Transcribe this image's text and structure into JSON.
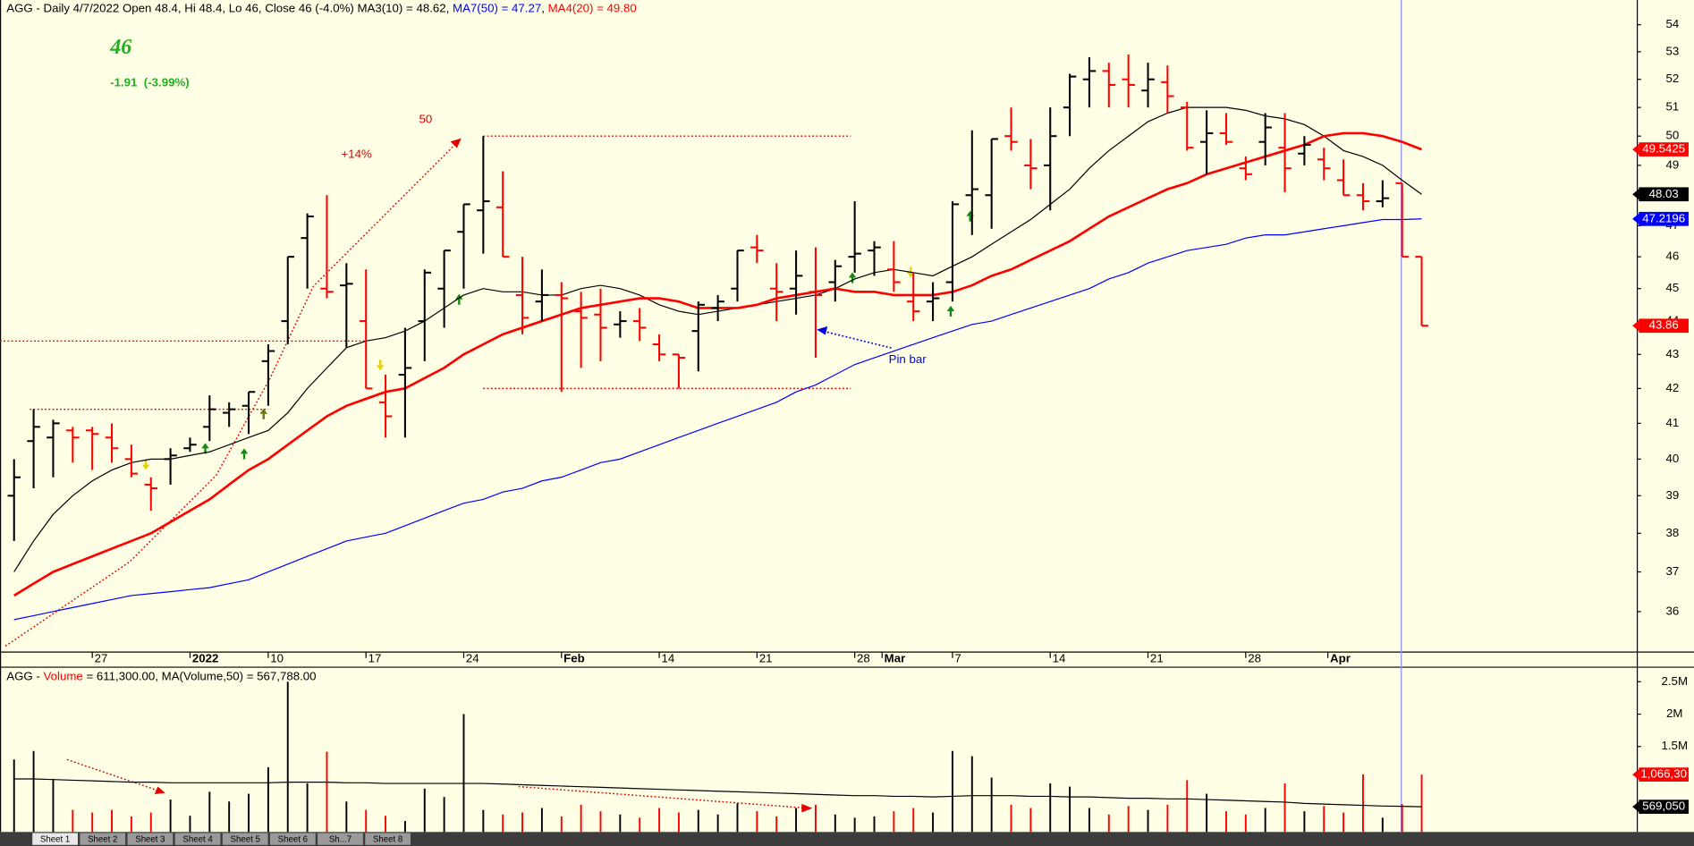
{
  "chart_data": [
    {
      "type": "ohlc",
      "header": [
        {
          "text": "AGG - Daily 4/7/2022 Open 48.4, Hi 48.4, Lo 46, Close 46 (-4.0%) MA3(10) = 48.62, ",
          "color": "#000000"
        },
        {
          "text": "MA7(50) = 47.27",
          "color": "#0000ff"
        },
        {
          "text": ", ",
          "color": "#000000"
        },
        {
          "text": "MA4(20) = 49.80",
          "color": "#ff0000"
        }
      ],
      "price_label": "46",
      "change_label": "-1.91  (-3.99%)",
      "log_scale": true,
      "xlim": [
        -0.72,
        83
      ],
      "ylim": [
        35.02,
        54.93
      ],
      "yticks": [
        36,
        37,
        38,
        39,
        40,
        41,
        42,
        43,
        44,
        45,
        46,
        47,
        48,
        49,
        50,
        51,
        52,
        53,
        54
      ],
      "xticks": [
        {
          "value": 4,
          "label": "27"
        },
        {
          "value": 9,
          "label": "2022"
        },
        {
          "value": 13,
          "label": "10"
        },
        {
          "value": 18,
          "label": "17"
        },
        {
          "value": 23,
          "label": "24"
        },
        {
          "value": 28,
          "label": "Feb"
        },
        {
          "value": 33,
          "label": "14"
        },
        {
          "value": 38,
          "label": "21"
        },
        {
          "value": 43,
          "label": "28"
        },
        {
          "value": 44.4,
          "label": "Mar"
        },
        {
          "value": 48,
          "label": "7"
        },
        {
          "value": 53,
          "label": "14"
        },
        {
          "value": 58,
          "label": "21"
        },
        {
          "value": 63,
          "label": "28"
        },
        {
          "value": 67.2,
          "label": "Apr"
        }
      ],
      "up_color": "#000000",
      "down_color": "#ff0000",
      "open": [
        39.0,
        40.5,
        40.6,
        40.8,
        40.8,
        40.6,
        40.0,
        39.3,
        40.0,
        40.3,
        40.9,
        41.3,
        41.5,
        42.8,
        44.0,
        46.6,
        45.0,
        45.1,
        44.0,
        41.6,
        42.4,
        44.0,
        45.0,
        46.8,
        47.5,
        47.6,
        44.8,
        44.6,
        44.8,
        44.3,
        44.2,
        43.9,
        44.0,
        43.3,
        43.0,
        43.7,
        44.4,
        45.0,
        46.3,
        45.0,
        45.0,
        44.9,
        45.2,
        46.0,
        46.2,
        45.6,
        44.6,
        44.6,
        45.2,
        48.0,
        48.0,
        50.0,
        49.0,
        49.0,
        51.0,
        52.0,
        52.3,
        52.0,
        51.6,
        51.9,
        51.0,
        49.8,
        50.1,
        48.9,
        49.8,
        49.6,
        49.4,
        49.2,
        48.5,
        48.0,
        47.8,
        48.4,
        46
      ],
      "high": [
        40.0,
        41.4,
        41.1,
        40.9,
        40.9,
        41.0,
        40.4,
        39.5,
        40.3,
        40.6,
        41.8,
        41.6,
        41.9,
        43.3,
        46.0,
        47.4,
        48.0,
        45.8,
        45.6,
        42.4,
        43.8,
        45.6,
        46.2,
        47.7,
        50.0,
        48.8,
        46.0,
        45.6,
        45.2,
        44.9,
        45.0,
        44.3,
        44.4,
        43.6,
        43.0,
        44.6,
        44.8,
        46.2,
        46.7,
        45.8,
        46.2,
        46.3,
        45.9,
        47.8,
        46.5,
        46.5,
        45.5,
        45.2,
        47.8,
        50.2,
        49.9,
        51.0,
        49.9,
        51.0,
        52.2,
        52.8,
        52.6,
        52.9,
        52.6,
        52.5,
        51.2,
        50.9,
        50.8,
        49.3,
        50.8,
        50.8,
        50.0,
        49.6,
        49.2,
        48.4,
        48.5,
        48.4,
        46
      ],
      "low": [
        37.8,
        39.2,
        39.5,
        39.9,
        39.7,
        39.9,
        39.5,
        38.6,
        39.3,
        40.2,
        40.5,
        40.9,
        40.7,
        41.5,
        43.3,
        45.0,
        44.7,
        43.2,
        42.0,
        40.6,
        40.6,
        42.8,
        43.8,
        45.0,
        46.1,
        46.0,
        43.6,
        44.0,
        41.9,
        42.6,
        42.8,
        43.5,
        43.4,
        42.8,
        42.0,
        42.5,
        44.0,
        44.6,
        45.8,
        44.0,
        44.2,
        42.9,
        44.6,
        45.5,
        45.4,
        44.9,
        44.0,
        44.0,
        44.6,
        46.7,
        46.9,
        49.5,
        48.2,
        47.5,
        50.0,
        51.0,
        51.0,
        51.0,
        51.0,
        50.8,
        49.5,
        48.7,
        49.7,
        48.5,
        49.0,
        48.1,
        49.0,
        48.5,
        48.0,
        47.5,
        47.6,
        46,
        43.86
      ],
      "close": [
        39.5,
        40.9,
        41.0,
        40.6,
        40.7,
        40.3,
        39.6,
        39.2,
        40.1,
        40.4,
        41.4,
        41.4,
        41.9,
        43.1,
        46.0,
        47.3,
        44.9,
        45.15,
        42.0,
        41.2,
        42.6,
        45.5,
        46.2,
        47.7,
        47.8,
        46.0,
        44.1,
        44.8,
        44.7,
        44.1,
        43.8,
        44.0,
        43.8,
        43.0,
        42.9,
        44.5,
        44.6,
        46.2,
        46.2,
        44.9,
        45.4,
        44.8,
        45.7,
        46.1,
        46.3,
        45.2,
        44.3,
        44.7,
        47.7,
        48.2,
        49.9,
        49.8,
        48.9,
        50.0,
        52.1,
        52.3,
        51.8,
        51.8,
        52.0,
        51.4,
        49.6,
        50.1,
        49.8,
        48.7,
        50.3,
        48.9,
        49.7,
        48.9,
        48.0,
        47.8,
        47.9,
        46,
        43.86
      ],
      "series": [
        {
          "color": "#000000",
          "values": [
            37.0,
            37.8,
            38.5,
            39.0,
            39.4,
            39.7,
            39.9,
            40.0,
            40.0,
            40.1,
            40.2,
            40.4,
            40.6,
            40.8,
            41.3,
            42.0,
            42.6,
            43.2,
            43.4,
            43.5,
            43.7,
            44.0,
            44.4,
            44.8,
            45.0,
            44.9,
            44.9,
            44.8,
            44.8,
            45.0,
            45.1,
            45.0,
            44.8,
            44.5,
            44.3,
            44.2,
            44.3,
            44.4,
            44.5,
            44.6,
            44.7,
            44.8,
            45.0,
            45.3,
            45.5,
            45.6,
            45.5,
            45.4,
            45.7,
            46.0,
            46.4,
            46.8,
            47.2,
            47.7,
            48.2,
            48.9,
            49.5,
            50.0,
            50.5,
            50.8,
            51.0,
            51.0,
            51.0,
            50.9,
            50.7,
            50.6,
            50.4,
            50.0,
            49.5,
            49.3,
            49.0,
            48.5,
            48.03
          ]
        },
        {
          "color": "#ff0000",
          "values": [
            36.4,
            36.7,
            37.0,
            37.2,
            37.4,
            37.6,
            37.8,
            38.0,
            38.3,
            38.6,
            38.9,
            39.3,
            39.7,
            40.0,
            40.4,
            40.8,
            41.2,
            41.5,
            41.7,
            41.9,
            42.0,
            42.3,
            42.6,
            43.0,
            43.3,
            43.6,
            43.8,
            44.0,
            44.2,
            44.4,
            44.5,
            44.6,
            44.7,
            44.7,
            44.6,
            44.4,
            44.4,
            44.4,
            44.5,
            44.7,
            44.8,
            44.9,
            45.0,
            44.9,
            44.9,
            44.8,
            44.8,
            44.8,
            44.9,
            45.1,
            45.4,
            45.6,
            45.9,
            46.2,
            46.5,
            46.9,
            47.3,
            47.6,
            47.9,
            48.2,
            48.4,
            48.7,
            48.9,
            49.1,
            49.3,
            49.5,
            49.7,
            50.0,
            50.1,
            50.1,
            50.0,
            49.8,
            49.5425
          ]
        },
        {
          "color": "#0000ff",
          "values": [
            35.8,
            35.9,
            36.0,
            36.1,
            36.2,
            36.3,
            36.4,
            36.45,
            36.5,
            36.55,
            36.6,
            36.7,
            36.8,
            37.0,
            37.2,
            37.4,
            37.6,
            37.8,
            37.9,
            38.0,
            38.2,
            38.4,
            38.6,
            38.8,
            38.9,
            39.1,
            39.2,
            39.4,
            39.5,
            39.7,
            39.9,
            40.0,
            40.2,
            40.4,
            40.6,
            40.8,
            41.0,
            41.2,
            41.4,
            41.6,
            41.9,
            42.1,
            42.4,
            42.7,
            42.9,
            43.1,
            43.3,
            43.5,
            43.7,
            43.9,
            44.0,
            44.2,
            44.4,
            44.6,
            44.8,
            45.0,
            45.3,
            45.5,
            45.8,
            46.0,
            46.2,
            46.3,
            46.4,
            46.6,
            46.7,
            46.7,
            46.8,
            46.9,
            47.0,
            47.1,
            47.2,
            47.2,
            47.2196
          ]
        }
      ],
      "reference_lines": [
        {
          "y": 41.4,
          "x": [
            0.8,
            13
          ]
        },
        {
          "y": 43.4,
          "x": [
            -0.72,
            18
          ]
        },
        {
          "y": 50,
          "x": [
            24,
            42.8
          ]
        },
        {
          "y": 42,
          "x": [
            24,
            42.8
          ]
        }
      ],
      "annotations": [
        "50",
        "+14%",
        "Pin bar"
      ]
    },
    {
      "type": "volume",
      "header": [
        {
          "text": "AGG - ",
          "color": "#000000"
        },
        {
          "text": "Volume",
          "color": "#ff0000"
        },
        {
          "text": " = 611,300.00, MA(Volume,50) = 567,788.00",
          "color": "#000000"
        }
      ],
      "ylim": [
        180000,
        2700000
      ],
      "yticks": [
        {
          "value": 2500000,
          "label": "2.5M"
        },
        {
          "value": 2000000,
          "label": "2M"
        },
        {
          "value": 1500000,
          "label": "1.5M"
        }
      ],
      "values": [
        1300000,
        1430000,
        1000000,
        520000,
        480000,
        520000,
        420000,
        480000,
        680000,
        430000,
        800000,
        650000,
        770000,
        1180000,
        2500000,
        930000,
        1420000,
        650000,
        520000,
        430000,
        350000,
        850000,
        720000,
        2000000,
        520000,
        450000,
        480000,
        550000,
        420000,
        600000,
        500000,
        450000,
        400000,
        550000,
        480000,
        520000,
        450000,
        620000,
        500000,
        420000,
        550000,
        600000,
        450000,
        400000,
        420000,
        500000,
        550000,
        480000,
        1430000,
        1350000,
        1020000,
        600000,
        550000,
        930000,
        880000,
        550000,
        450000,
        580000,
        520000,
        600000,
        980000,
        770000,
        500000,
        450000,
        550000,
        930000,
        500000,
        580000,
        480000,
        1070000,
        400000,
        611300,
        1066300
      ],
      "last_label": "1,066,30",
      "ma": {
        "color": "#000000",
        "values": [
          1000000,
          1000000,
          990000,
          980000,
          970000,
          960000,
          950000,
          950000,
          940000,
          940000,
          940000,
          940000,
          940000,
          940000,
          950000,
          950000,
          950000,
          940000,
          940000,
          930000,
          930000,
          930000,
          930000,
          930000,
          930000,
          920000,
          910000,
          900000,
          890000,
          880000,
          870000,
          860000,
          850000,
          840000,
          830000,
          820000,
          810000,
          800000,
          790000,
          780000,
          770000,
          760000,
          750000,
          740000,
          740000,
          730000,
          730000,
          720000,
          730000,
          740000,
          740000,
          740000,
          730000,
          730000,
          720000,
          720000,
          710000,
          700000,
          700000,
          690000,
          690000,
          680000,
          670000,
          660000,
          650000,
          640000,
          620000,
          610000,
          600000,
          590000,
          580000,
          575000,
          569050
        ],
        "last_label": "569,050"
      }
    }
  ],
  "tabs": [
    "Sheet 1",
    "Sheet 2",
    "Sheet 3",
    "Sheet 4",
    "Sheet 5",
    "Sheet 6",
    "Sh...7",
    "Sheet 8"
  ]
}
